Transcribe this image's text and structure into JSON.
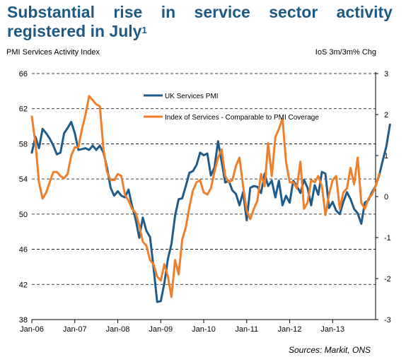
{
  "title": {
    "words_line1": [
      "Substantial",
      "rise",
      "in",
      "service",
      "sector",
      "activity"
    ],
    "line2": "registered in July",
    "footnote_mark": "1"
  },
  "left_axis_title": "PMI Services Activity Index",
  "right_axis_title": "IoS 3m/3m% Chg",
  "source": "Sources: Markit, ONS",
  "colors": {
    "pmi": "#1f5c8b",
    "ios": "#f07f2b",
    "title": "#1f5a84"
  },
  "chart_data": {
    "type": "line",
    "y_left_ticks": [
      38,
      42,
      46,
      50,
      54,
      58,
      62,
      66
    ],
    "y_left_lim": [
      38,
      66
    ],
    "y_right_ticks": [
      -3,
      -2,
      -1,
      0,
      1,
      2,
      3
    ],
    "y_right_lim": [
      -3,
      3
    ],
    "x_ticks": [
      "Jan-06",
      "Jan-07",
      "Jan-08",
      "Jan-09",
      "Jan-10",
      "Jan-11",
      "Jan-12",
      "Jan-13"
    ],
    "grid": "horizontal-dashed",
    "legend_position": "top-center",
    "series": [
      {
        "name": "UK Services PMI",
        "axis": "left",
        "x_start": "Jan-06",
        "values": [
          57.0,
          58.8,
          57.5,
          59.7,
          59.2,
          58.6,
          57.8,
          56.8,
          57.0,
          59.2,
          59.8,
          60.5,
          59.2,
          57.3,
          57.4,
          57.5,
          57.3,
          57.8,
          57.3,
          57.8,
          57.0,
          55.3,
          53.0,
          52.1,
          52.6,
          52.1,
          51.9,
          52.8,
          50.9,
          49.4,
          47.3,
          49.6,
          48.1,
          47.4,
          43.9,
          40.0,
          40.1,
          42.1,
          44.9,
          46.6,
          49.8,
          51.7,
          51.8,
          53.2,
          54.7,
          54.9,
          55.6,
          57.0,
          56.7,
          56.9,
          54.4,
          55.3,
          58.3,
          56.0,
          53.6,
          53.8,
          52.7,
          52.3,
          51.0,
          52.5,
          49.3,
          53.0,
          53.2,
          53.1,
          52.4,
          54.6,
          53.2,
          53.8,
          51.9,
          53.8,
          51.0,
          52.1,
          51.3,
          53.8,
          53.2,
          52.4,
          53.9,
          53.0,
          51.0,
          53.3,
          52.2,
          54.8,
          54.6,
          50.7,
          51.4,
          50.4,
          50.0,
          51.4,
          52.5,
          51.7,
          50.6,
          50.1,
          48.9,
          51.3,
          51.6,
          52.5,
          53.2,
          54.4,
          56.1,
          57.7,
          60.2
        ]
      },
      {
        "name": "Index of Services - Comparable to PMI Coverage",
        "axis": "right",
        "x_start": "Jan-06",
        "values": [
          1.95,
          1.3,
          0.35,
          -0.05,
          0.1,
          0.35,
          0.6,
          0.6,
          0.5,
          0.45,
          0.55,
          1.0,
          1.2,
          1.2,
          1.65,
          2.0,
          2.45,
          2.35,
          2.25,
          2.2,
          1.15,
          0.6,
          0.4,
          0.4,
          0.55,
          0.5,
          0.05,
          -0.1,
          -0.3,
          -0.4,
          -0.7,
          -1.1,
          -1.2,
          -1.55,
          -1.65,
          -1.95,
          -2.05,
          -1.65,
          -1.95,
          -2.45,
          -1.55,
          -1.9,
          -1.05,
          -0.75,
          -0.25,
          0.15,
          0.35,
          0.4,
          0.1,
          0.05,
          0.2,
          0.6,
          0.95,
          1.15,
          0.5,
          0.35,
          0.4,
          0.75,
          0.95,
          0.25,
          -0.35,
          -0.55,
          -0.3,
          -0.1,
          0.55,
          0.25,
          1.3,
          0.5,
          1.45,
          1.65,
          1.9,
          0.85,
          0.35,
          0.35,
          0.2,
          0.85,
          -0.3,
          -0.15,
          0.4,
          0.35,
          0.5,
          0.25,
          -0.45,
          0.05,
          0.4,
          0.5,
          -0.3,
          0.1,
          0.2,
          0.7,
          0.3,
          0.95,
          -0.15,
          -0.3,
          -0.05,
          0.05,
          0.25,
          0.55
        ]
      }
    ]
  }
}
